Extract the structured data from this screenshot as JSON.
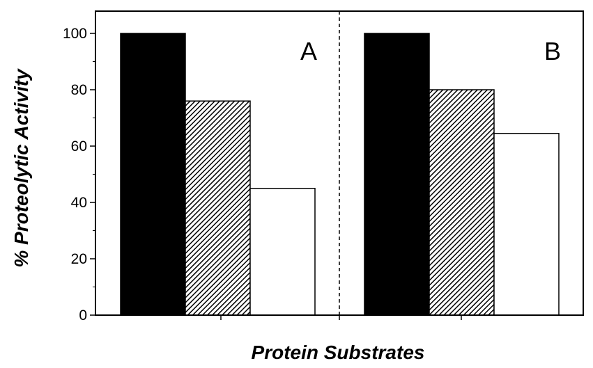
{
  "chart_data": {
    "type": "bar",
    "ylabel": "% Proteolytic Activity",
    "xlabel": "Protein Substrates",
    "ylim": [
      0,
      105
    ],
    "yticks": [
      0,
      20,
      40,
      60,
      80,
      100
    ],
    "grid": false,
    "panels": [
      {
        "label": "A",
        "values": [
          100,
          76,
          45
        ]
      },
      {
        "label": "B",
        "values": [
          100,
          80,
          64.5
        ]
      }
    ],
    "bar_styles": [
      "solid-black",
      "diagonal-hatch",
      "white"
    ]
  }
}
